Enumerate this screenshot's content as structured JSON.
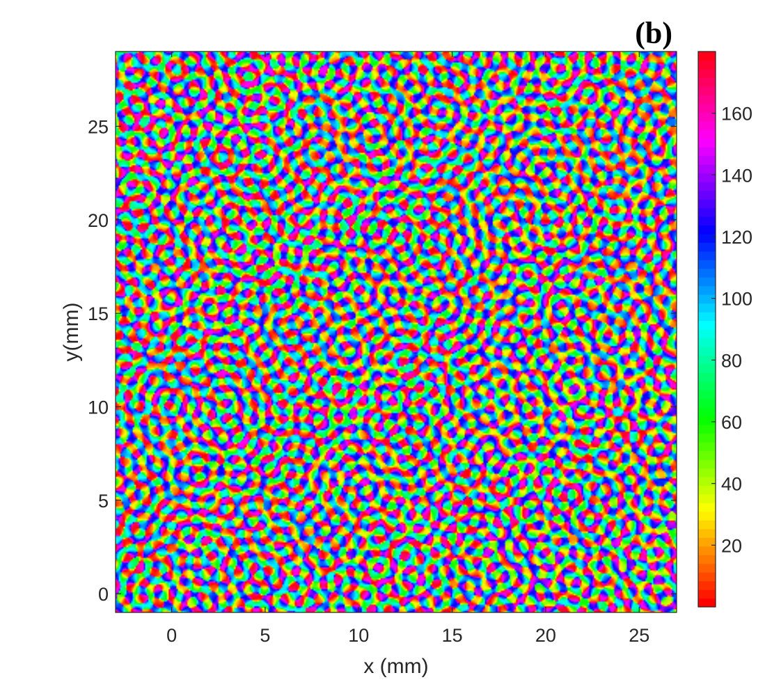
{
  "chart_data": {
    "type": "heatmap",
    "panel_label": "(b)",
    "title": "",
    "xlabel": "x (mm)",
    "ylabel": "y(mm)",
    "xlim": [
      -3,
      27
    ],
    "ylim": [
      -1,
      29
    ],
    "x_ticks": [
      0,
      5,
      10,
      15,
      20,
      25
    ],
    "y_ticks": [
      0,
      5,
      10,
      15,
      20,
      25
    ],
    "colorbar": {
      "range": [
        0,
        180
      ],
      "ticks": [
        20,
        40,
        60,
        80,
        100,
        120,
        140,
        160
      ],
      "colormap": "hsv",
      "levels": 64
    },
    "field_description_values": "orientation preference map, values 0-180 degrees, periodic (hue) colormap",
    "grid": false
  },
  "colors": {
    "axis": "#262626",
    "background": "#ffffff"
  }
}
